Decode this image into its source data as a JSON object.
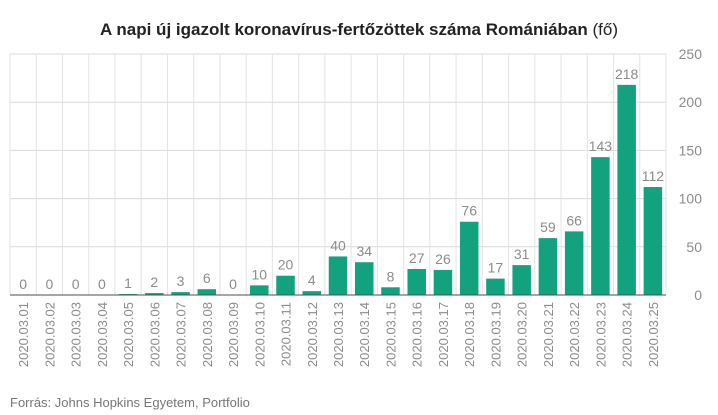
{
  "title": "A napi új igazolt koronavírus-fertőzöttek száma Romániában",
  "title_unit": "(fő)",
  "source": "Forrás: Johns Hopkins Egyetem, Portfolio",
  "chart_data": {
    "type": "bar",
    "title": "A napi új igazolt koronavírus-fertőzöttek száma Romániában (fő)",
    "categories": [
      "2020.03.01",
      "2020.03.02",
      "2020.03.03",
      "2020.03.04",
      "2020.03.05",
      "2020.03.06",
      "2020.03.07",
      "2020.03.08",
      "2020.03.09",
      "2020.03.10",
      "2020.03.11",
      "2020.03.12",
      "2020.03.13",
      "2020.03.14",
      "2020.03.15",
      "2020.03.16",
      "2020.03.17",
      "2020.03.18",
      "2020.03.19",
      "2020.03.20",
      "2020.03.21",
      "2020.03.22",
      "2020.03.23",
      "2020.03.24",
      "2020.03.25"
    ],
    "values": [
      0,
      0,
      0,
      0,
      1,
      2,
      3,
      6,
      0,
      10,
      20,
      4,
      40,
      34,
      8,
      27,
      26,
      76,
      17,
      31,
      59,
      66,
      143,
      218,
      112
    ],
    "ylim": [
      0,
      250
    ],
    "yticks": [
      0,
      50,
      100,
      150,
      200,
      250
    ],
    "y_axis_side": "right",
    "grid": true,
    "data_labels": true,
    "bar_color": "#12a37e"
  }
}
